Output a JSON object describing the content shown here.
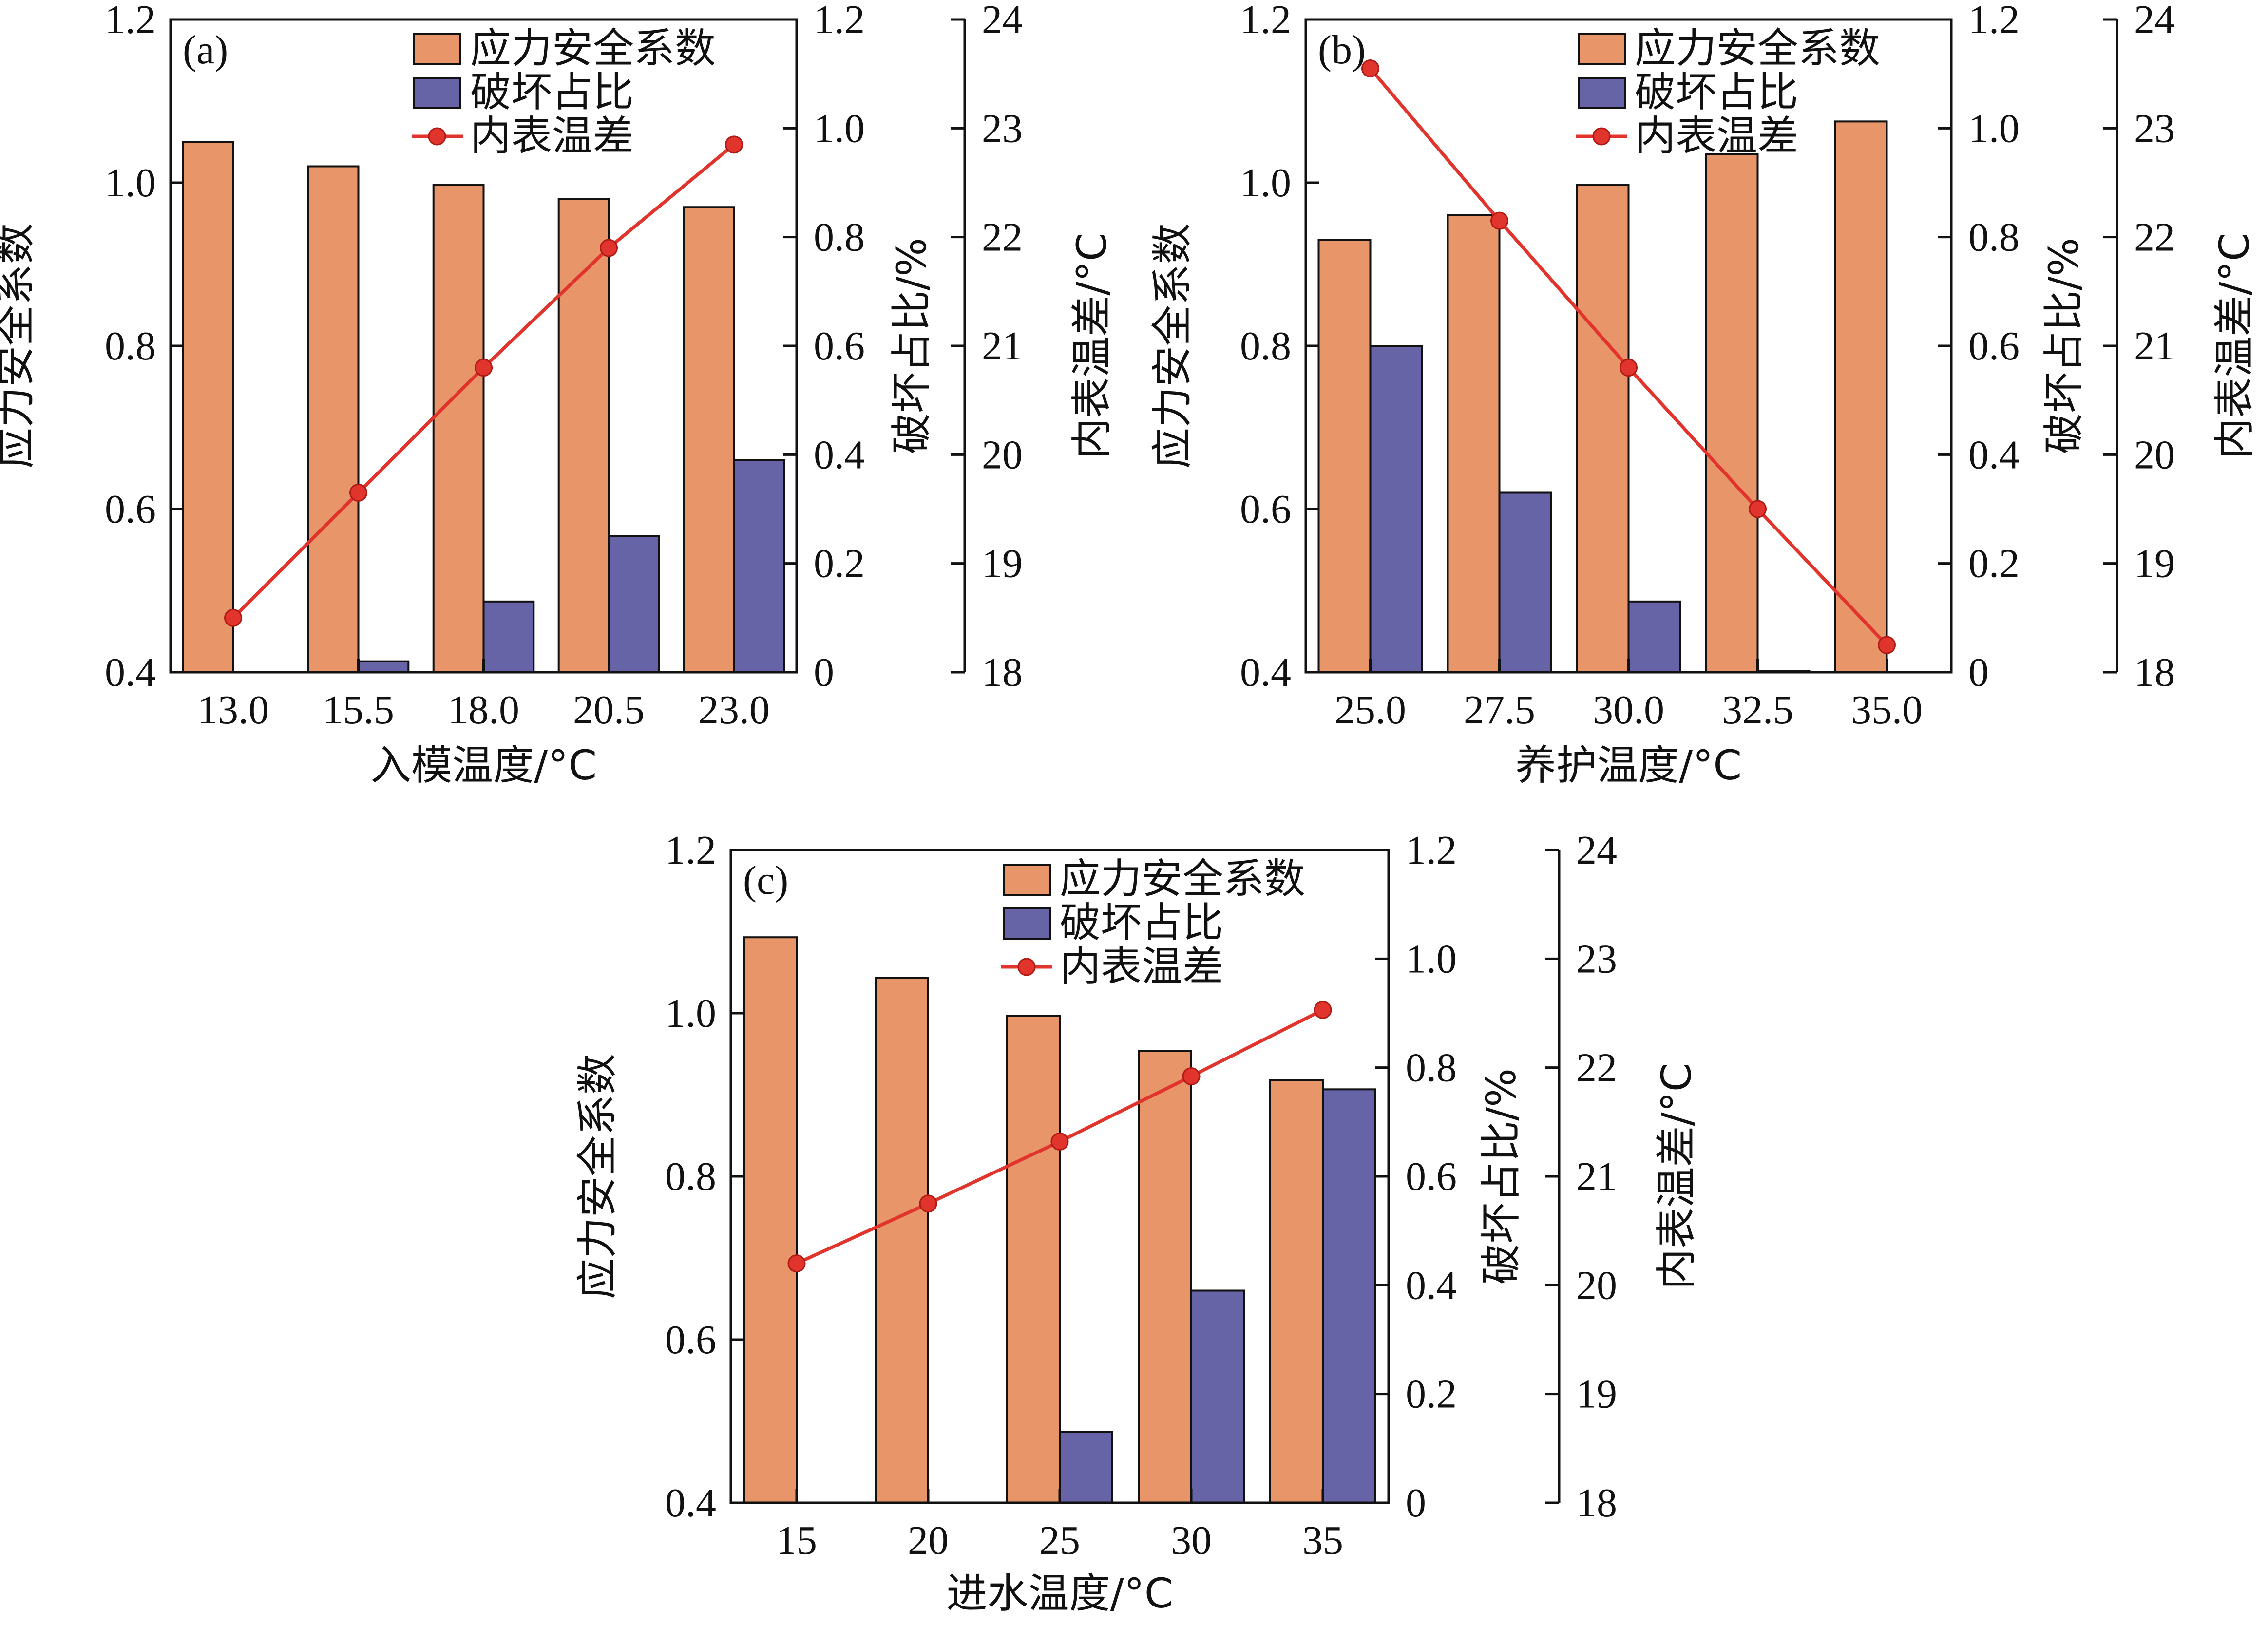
{
  "colors": {
    "safety_bar": "#E8956A",
    "damage_bar": "#6663A6",
    "temp_line": "#E0342C",
    "axis": "#111111"
  },
  "chart_data": [
    {
      "type": "bar",
      "panel_label": "(a)",
      "categories": [
        "13.0",
        "15.5",
        "18.0",
        "20.5",
        "23.0"
      ],
      "xlabel": "入模温度/°C",
      "left_axis": {
        "label": "应力安全系数",
        "ylim": [
          0.4,
          1.2
        ],
        "ticks": [
          "0.4",
          "0.6",
          "0.8",
          "1.0",
          "1.2"
        ]
      },
      "right_axis_1": {
        "label": "破坏占比/%",
        "ylim": [
          0,
          1.2
        ],
        "ticks": [
          "0",
          "0.2",
          "0.4",
          "0.6",
          "0.8",
          "1.0",
          "1.2"
        ]
      },
      "right_axis_2": {
        "label": "内表温差/°C",
        "ylim": [
          18,
          24
        ],
        "ticks": [
          "18",
          "19",
          "20",
          "21",
          "22",
          "23",
          "24"
        ]
      },
      "legend": {
        "placement": "top-right",
        "entries": [
          "应力安全系数",
          "破坏占比",
          "内表温差"
        ]
      },
      "series": [
        {
          "name": "应力安全系数",
          "type": "bar",
          "axis": "left",
          "values": [
            1.05,
            1.02,
            0.997,
            0.98,
            0.97
          ]
        },
        {
          "name": "破坏占比",
          "type": "bar",
          "axis": "right_1",
          "values": [
            0,
            0.02,
            0.13,
            0.25,
            0.39
          ]
        },
        {
          "name": "内表温差",
          "type": "line",
          "axis": "right_2",
          "values": [
            18.5,
            19.65,
            20.8,
            21.9,
            22.85
          ]
        }
      ]
    },
    {
      "type": "bar",
      "panel_label": "(b)",
      "categories": [
        "25.0",
        "27.5",
        "30.0",
        "32.5",
        "35.0"
      ],
      "xlabel": "养护温度/°C",
      "left_axis": {
        "label": "应力安全系数",
        "ylim": [
          0.4,
          1.2
        ],
        "ticks": [
          "0.4",
          "0.6",
          "0.8",
          "1.0",
          "1.2"
        ]
      },
      "right_axis_1": {
        "label": "破坏占比/%",
        "ylim": [
          0,
          1.2
        ],
        "ticks": [
          "0",
          "0.2",
          "0.4",
          "0.6",
          "0.8",
          "1.0",
          "1.2"
        ]
      },
      "right_axis_2": {
        "label": "内表温差/°C",
        "ylim": [
          18,
          24
        ],
        "ticks": [
          "18",
          "19",
          "20",
          "21",
          "22",
          "23",
          "24"
        ]
      },
      "legend": {
        "placement": "top-right",
        "entries": [
          "应力安全系数",
          "破坏占比",
          "内表温差"
        ]
      },
      "series": [
        {
          "name": "应力安全系数",
          "type": "bar",
          "axis": "left",
          "values": [
            0.93,
            0.96,
            0.997,
            1.035,
            1.075
          ]
        },
        {
          "name": "破坏占比",
          "type": "bar",
          "axis": "right_1",
          "values": [
            0.6,
            0.33,
            0.13,
            0.002,
            0
          ]
        },
        {
          "name": "内表温差",
          "type": "line",
          "axis": "right_2",
          "values": [
            23.55,
            22.15,
            20.8,
            19.5,
            18.25
          ]
        }
      ]
    },
    {
      "type": "bar",
      "panel_label": "(c)",
      "categories": [
        "15",
        "20",
        "25",
        "30",
        "35"
      ],
      "xlabel": "进水温度/°C",
      "left_axis": {
        "label": "应力安全系数",
        "ylim": [
          0.4,
          1.2
        ],
        "ticks": [
          "0.4",
          "0.6",
          "0.8",
          "1.0",
          "1.2"
        ]
      },
      "right_axis_1": {
        "label": "破坏占比/%",
        "ylim": [
          0,
          1.2
        ],
        "ticks": [
          "0",
          "0.2",
          "0.4",
          "0.6",
          "0.8",
          "1.0",
          "1.2"
        ]
      },
      "right_axis_2": {
        "label": "内表温差/°C",
        "ylim": [
          18,
          24
        ],
        "ticks": [
          "18",
          "19",
          "20",
          "21",
          "22",
          "23",
          "24"
        ]
      },
      "legend": {
        "placement": "top-right",
        "entries": [
          "应力安全系数",
          "破坏占比",
          "内表温差"
        ]
      },
      "series": [
        {
          "name": "应力安全系数",
          "type": "bar",
          "axis": "left",
          "values": [
            1.093,
            1.043,
            0.997,
            0.954,
            0.918
          ]
        },
        {
          "name": "破坏占比",
          "type": "bar",
          "axis": "right_1",
          "values": [
            0,
            0,
            0.13,
            0.39,
            0.76
          ]
        },
        {
          "name": "内表温差",
          "type": "line",
          "axis": "right_2",
          "values": [
            20.2,
            20.75,
            21.32,
            21.92,
            22.53
          ]
        }
      ]
    }
  ]
}
